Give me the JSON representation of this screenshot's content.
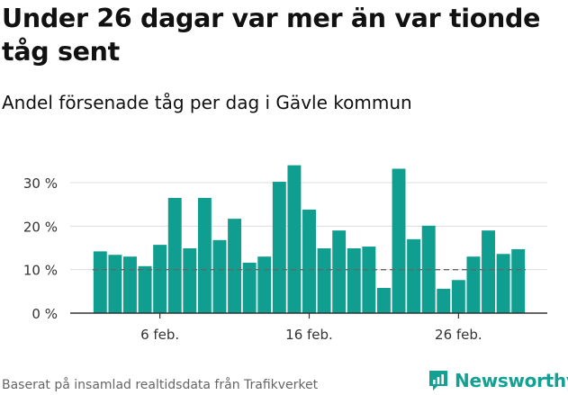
{
  "title": "Under 26 dagar var mer än var tionde tåg sent",
  "subtitle": "Andel försenade tåg per dag i Gävle kommun",
  "footer": "Baserat på insamlad realtidsdata från Trafikverket",
  "brand": "Newsworthy",
  "colors": {
    "bar": "#0f9e8f",
    "reference_line": "#666666",
    "grid": "#dddddd",
    "brand": "#14a093"
  },
  "chart_data": {
    "type": "bar",
    "title": "",
    "xlabel": "",
    "ylabel": "",
    "x_tick_labels": [
      "6 feb.",
      "16 feb.",
      "26 feb."
    ],
    "y_tick_labels": [
      "0 %",
      "10 %",
      "20 %",
      "30 %"
    ],
    "ylim": [
      0,
      36
    ],
    "grid": true,
    "reference_line": 10,
    "x": [
      "2 feb.",
      "3 feb.",
      "4 feb.",
      "5 feb.",
      "6 feb.",
      "7 feb.",
      "8 feb.",
      "9 feb.",
      "10 feb.",
      "11 feb.",
      "12 feb.",
      "13 feb.",
      "14 feb.",
      "15 feb.",
      "16 feb.",
      "17 feb.",
      "18 feb.",
      "19 feb.",
      "20 feb.",
      "21 feb.",
      "22 feb.",
      "23 feb.",
      "24 feb.",
      "25 feb.",
      "26 feb.",
      "27 feb.",
      "28 feb.",
      "29 feb.",
      "1 mars"
    ],
    "values": [
      14.2,
      13.4,
      13.0,
      10.8,
      15.7,
      26.5,
      14.9,
      26.5,
      16.8,
      21.7,
      11.6,
      13.0,
      30.2,
      34.0,
      23.8,
      14.9,
      19.0,
      14.9,
      15.3,
      5.8,
      33.2,
      17.0,
      20.1,
      5.6,
      7.6,
      13.0,
      19.0,
      13.6,
      14.7
    ]
  }
}
